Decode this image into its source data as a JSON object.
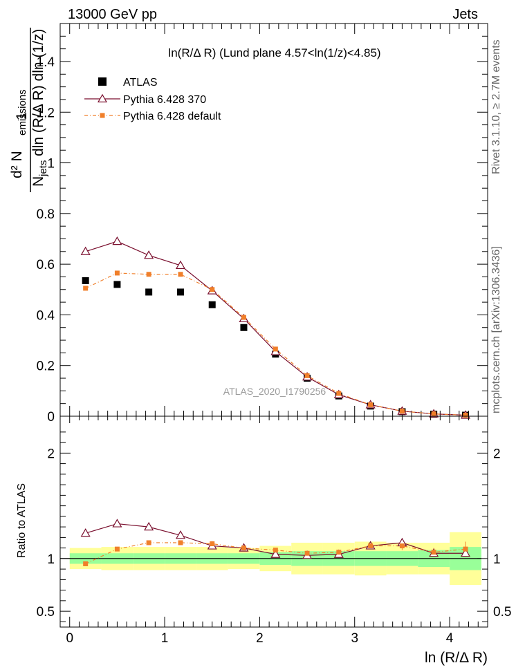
{
  "header": {
    "left": "13000 GeV pp",
    "right": "Jets"
  },
  "side_labels": {
    "rivet": "Rivet 3.1.10, ≥ 2.7M events",
    "mcplots": "mcplots.cern.ch [arXiv:1306.3436]"
  },
  "watermark": "ATLAS_2020_I1790256",
  "chart_data": [
    {
      "type": "scatter",
      "title": "ln(R/Δ R) (Lund plane 4.57<ln(1/z)<4.85)",
      "ylabel_parts": {
        "one": "1",
        "num": "d² N",
        "num_sub": "emissions",
        "den_prefix": "N",
        "den_sub": "jets",
        "den_rest": "dln (R/Δ R) dln (1/z)"
      },
      "xlim": [
        -0.1,
        4.4
      ],
      "ylim": [
        0,
        1.55
      ],
      "yticks": [
        "0",
        "0.2",
        "0.4",
        "0.6",
        "0.8",
        "1",
        "1.2",
        "1.4"
      ],
      "legend": [
        {
          "name": "ATLAS",
          "marker": "square",
          "color": "#000000"
        },
        {
          "name": "Pythia 6.428 370",
          "marker": "triangle",
          "color": "#7a0f2e"
        },
        {
          "name": "Pythia 6.428 default",
          "marker": "small-square",
          "color": "#f07f2a"
        }
      ],
      "x": [
        0.167,
        0.5,
        0.833,
        1.167,
        1.5,
        1.833,
        2.167,
        2.5,
        2.833,
        3.167,
        3.5,
        3.833,
        4.167
      ],
      "series": [
        {
          "name": "ATLAS",
          "values": [
            0.535,
            0.52,
            0.49,
            0.49,
            0.44,
            0.35,
            0.245,
            0.15,
            0.08,
            0.04,
            0.018,
            0.008,
            0.004
          ]
        },
        {
          "name": "Pythia 6.428 370",
          "values": [
            0.65,
            0.69,
            0.635,
            0.595,
            0.495,
            0.385,
            0.255,
            0.155,
            0.085,
            0.045,
            0.02,
            0.009,
            0.004
          ]
        },
        {
          "name": "Pythia 6.428 default",
          "values": [
            0.505,
            0.565,
            0.56,
            0.56,
            0.5,
            0.39,
            0.265,
            0.16,
            0.09,
            0.045,
            0.02,
            0.009,
            0.004
          ]
        }
      ]
    },
    {
      "type": "scatter",
      "ylabel": "Ratio to ATLAS",
      "xlabel": "ln (R/Δ R)",
      "xlim": [
        -0.1,
        4.4
      ],
      "ylim": [
        0.35,
        2.35
      ],
      "xticks": [
        "0",
        "1",
        "2",
        "3",
        "4"
      ],
      "yticks": [
        "0.5",
        "1",
        "2"
      ],
      "bands": {
        "green_half": [
          0.05,
          0.05,
          0.05,
          0.05,
          0.05,
          0.05,
          0.06,
          0.07,
          0.07,
          0.07,
          0.07,
          0.08,
          0.11
        ],
        "yellow_half": [
          0.1,
          0.11,
          0.11,
          0.11,
          0.11,
          0.1,
          0.12,
          0.15,
          0.15,
          0.16,
          0.15,
          0.15,
          0.25
        ],
        "green_color": "#99ff99",
        "yellow_color": "#ffff99"
      },
      "series": [
        {
          "name": "Pythia 6.428 370",
          "values": [
            1.24,
            1.33,
            1.3,
            1.22,
            1.12,
            1.1,
            1.04,
            1.03,
            1.04,
            1.12,
            1.15,
            1.05,
            1.05
          ]
        },
        {
          "name": "Pythia 6.428 default",
          "values": [
            0.95,
            1.09,
            1.15,
            1.15,
            1.14,
            1.1,
            1.08,
            1.05,
            1.06,
            1.12,
            1.12,
            1.06,
            1.09
          ]
        }
      ]
    }
  ]
}
